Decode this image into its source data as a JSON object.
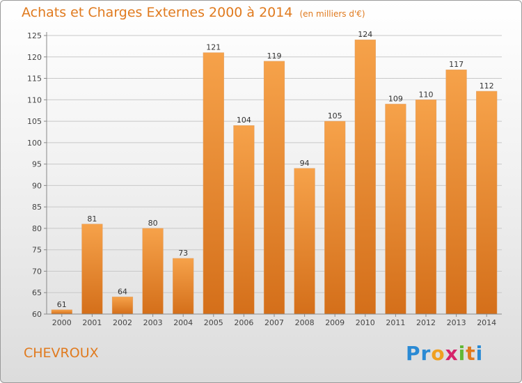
{
  "chart_data": {
    "type": "bar",
    "title": "Achats et Charges Externes 2000 à 2014",
    "subtitle": "(en milliers d'€)",
    "categories": [
      "2000",
      "2001",
      "2002",
      "2003",
      "2004",
      "2005",
      "2006",
      "2007",
      "2008",
      "2009",
      "2010",
      "2011",
      "2012",
      "2013",
      "2014"
    ],
    "values": [
      61,
      81,
      64,
      80,
      73,
      121,
      104,
      119,
      94,
      105,
      124,
      109,
      110,
      117,
      112
    ],
    "data_labels": [
      "61",
      "81",
      "64",
      "80",
      "73",
      "121",
      "104",
      "119",
      "94",
      "105",
      "124",
      "109",
      "110",
      "117",
      "112"
    ],
    "ylim": [
      60,
      125
    ],
    "yticks": [
      "60",
      "65",
      "70",
      "75",
      "80",
      "85",
      "90",
      "95",
      "100",
      "105",
      "110",
      "115",
      "120",
      "125"
    ],
    "grid": true,
    "colors": {
      "bar": "#f29a40",
      "bar_dark": "#d9721c",
      "accent": "#e07a1e"
    }
  },
  "footer": {
    "place": "CHEVROUX",
    "logo": {
      "letters": [
        "P",
        "r",
        "o",
        "x",
        "i",
        "t",
        "i"
      ],
      "colors": [
        "#2a8ad4",
        "#2a8ad4",
        "#f0a020",
        "#d6236b",
        "#62b836",
        "#e07a1e",
        "#2a8ad4"
      ]
    }
  }
}
